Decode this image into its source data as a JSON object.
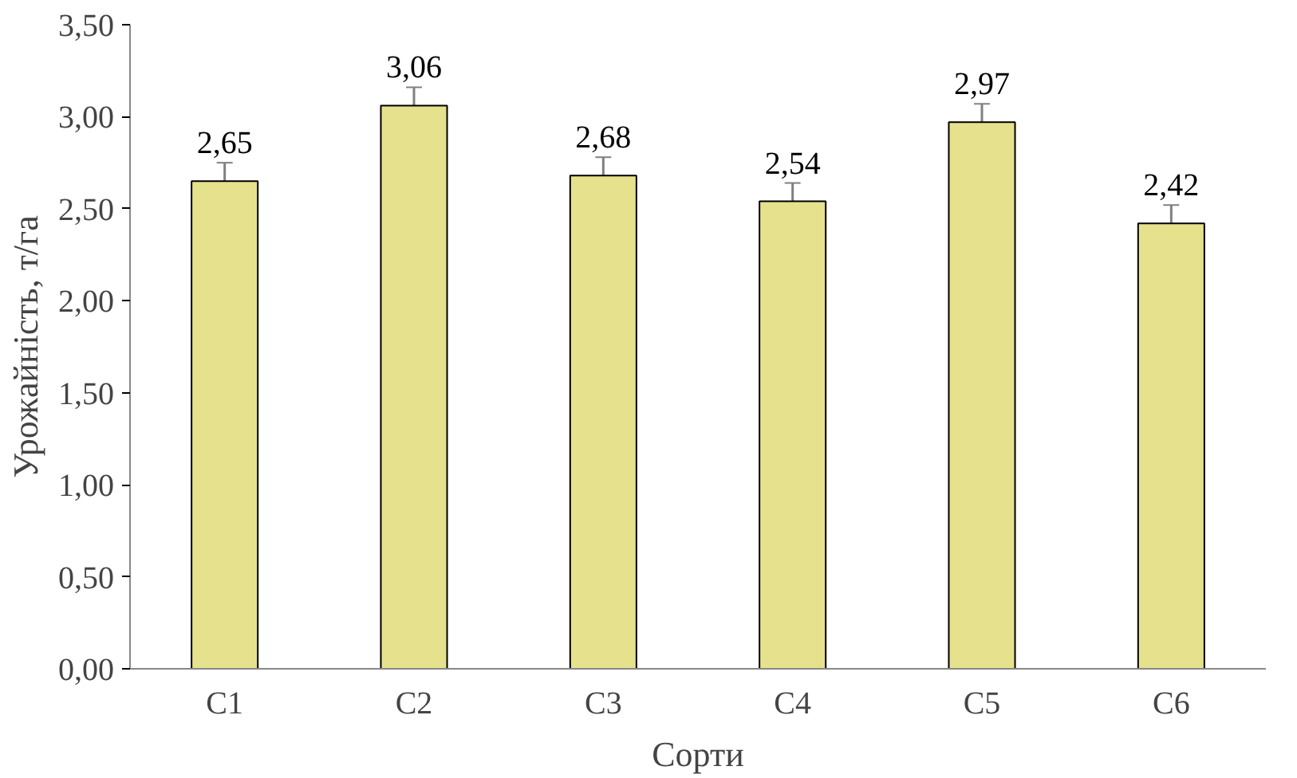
{
  "chart_data": {
    "type": "bar",
    "xlabel": "Сорти",
    "ylabel": "Урожайність, т/га",
    "categories": [
      "С1",
      "С2",
      "С3",
      "С4",
      "С5",
      "С6"
    ],
    "values": [
      2.65,
      3.06,
      2.68,
      2.54,
      2.97,
      2.42
    ],
    "errors": [
      0.1,
      0.1,
      0.1,
      0.1,
      0.1,
      0.1
    ],
    "value_labels": [
      "2,65",
      "3,06",
      "2,68",
      "2,54",
      "2,97",
      "2,42"
    ],
    "color": "#e6e18c",
    "ylim": [
      0,
      3.5
    ],
    "yticks": [
      {
        "value": 0,
        "label": "0,00"
      },
      {
        "value": 0.5,
        "label": "0,50"
      },
      {
        "value": 1,
        "label": "1,00"
      },
      {
        "value": 1.5,
        "label": "1,50"
      },
      {
        "value": 2,
        "label": "2,00"
      },
      {
        "value": 2.5,
        "label": "2,50"
      },
      {
        "value": 3,
        "label": "3,00"
      },
      {
        "value": 3.5,
        "label": "3,50"
      }
    ],
    "grid": false
  }
}
